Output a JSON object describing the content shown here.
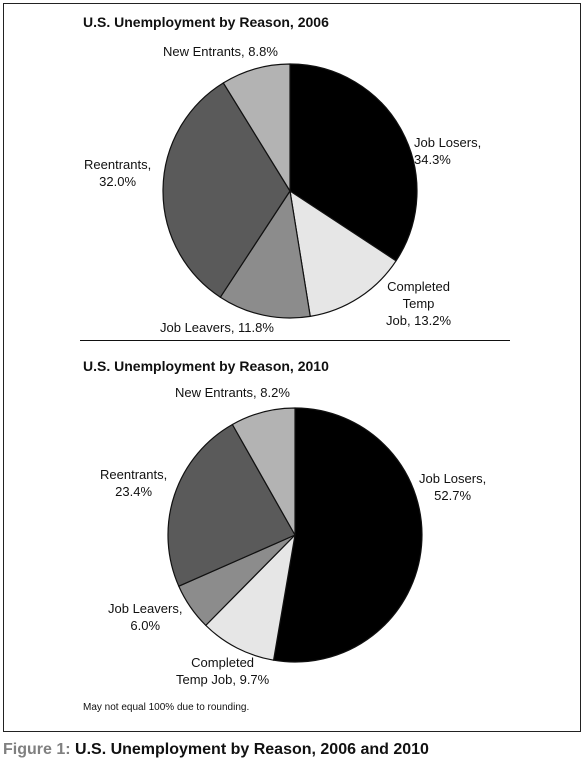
{
  "caption": {
    "label": "Figure 1:",
    "text": "U.S. Unemployment by Reason, 2006 and 2010"
  },
  "footnote": "May not equal 100% due to rounding.",
  "chart_data": [
    {
      "type": "pie",
      "title": "U.S. Unemployment by Reason, 2006",
      "slices": [
        {
          "name": "Job Losers",
          "value": 34.3,
          "label_lines": [
            "Job Losers,",
            "34.3%"
          ],
          "color": "#000000"
        },
        {
          "name": "Completed Temp Job",
          "value": 13.2,
          "label_lines": [
            "Completed",
            "Temp",
            "Job, 13.2%"
          ],
          "color": "#e6e6e6"
        },
        {
          "name": "Job Leavers",
          "value": 11.8,
          "label_lines": [
            "Job Leavers, 11.8%"
          ],
          "color": "#8c8c8c"
        },
        {
          "name": "Reentrants",
          "value": 32.0,
          "label_lines": [
            "Reentrants,",
            "32.0%"
          ],
          "color": "#5a5a5a"
        },
        {
          "name": "New Entrants",
          "value": 8.8,
          "label_lines": [
            "New Entrants, 8.8%"
          ],
          "color": "#b3b3b3"
        }
      ]
    },
    {
      "type": "pie",
      "title": "U.S. Unemployment by Reason, 2010",
      "slices": [
        {
          "name": "Job Losers",
          "value": 52.7,
          "label_lines": [
            "Job Losers,",
            "52.7%"
          ],
          "color": "#000000"
        },
        {
          "name": "Completed Temp Job",
          "value": 9.7,
          "label_lines": [
            "Completed",
            "Temp Job, 9.7%"
          ],
          "color": "#e6e6e6"
        },
        {
          "name": "Job Leavers",
          "value": 6.0,
          "label_lines": [
            "Job Leavers,",
            "6.0%"
          ],
          "color": "#8c8c8c"
        },
        {
          "name": "Reentrants",
          "value": 23.4,
          "label_lines": [
            "Reentrants,",
            "23.4%"
          ],
          "color": "#5a5a5a"
        },
        {
          "name": "New Entrants",
          "value": 8.2,
          "label_lines": [
            "New Entrants, 8.2%"
          ],
          "color": "#b3b3b3"
        }
      ]
    }
  ]
}
